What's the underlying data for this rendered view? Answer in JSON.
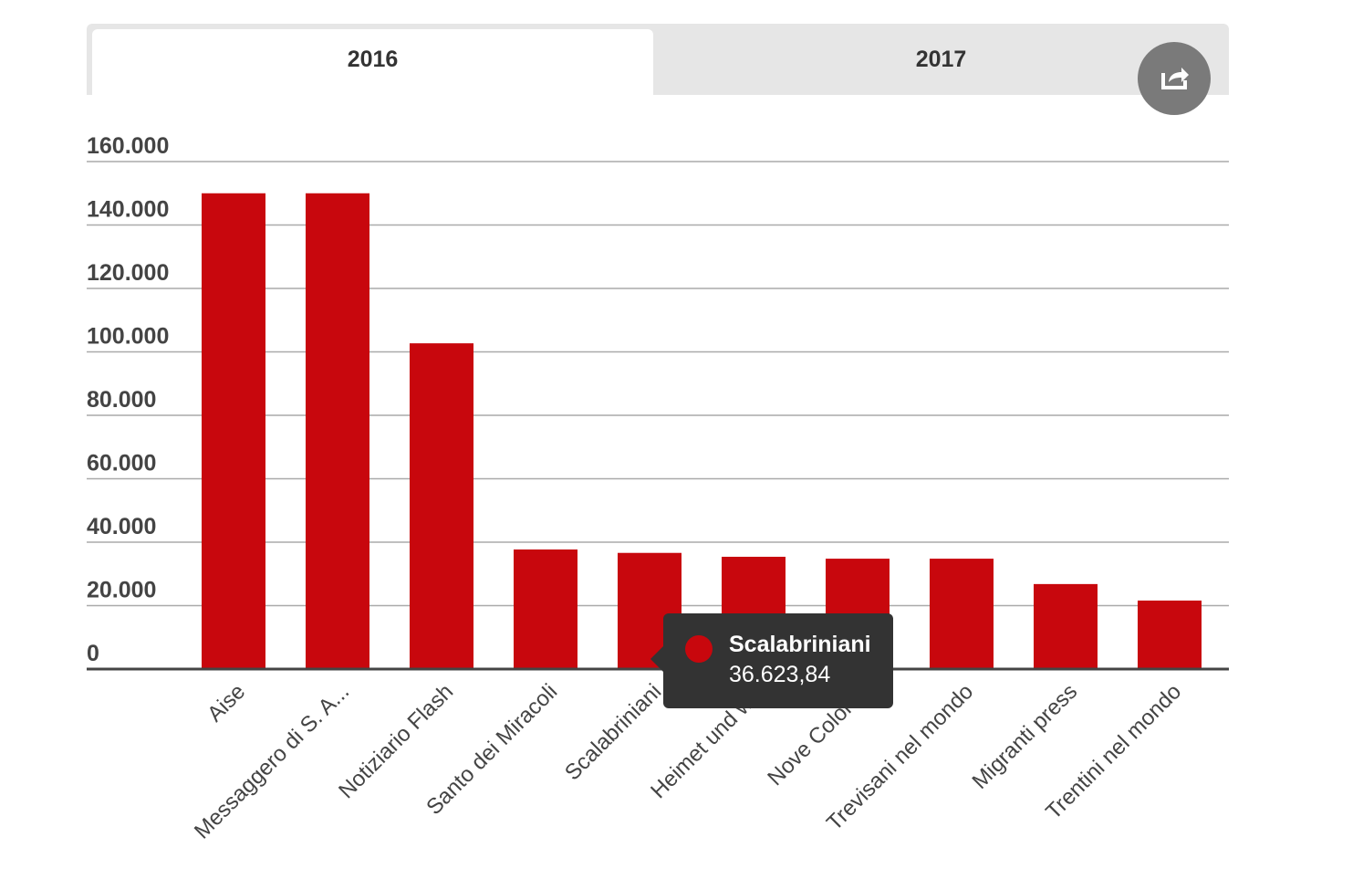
{
  "tabs": [
    {
      "label": "2016",
      "active": true
    },
    {
      "label": "2017",
      "active": false
    }
  ],
  "share_icon": "share-icon",
  "chart_data": {
    "type": "bar",
    "categories": [
      "Aise",
      "Messaggero di S. A...",
      "Notiziario Flash",
      "Santo dei Miracoli",
      "Scalabriniani",
      "Heimet und w...",
      "Nove Colon...",
      "Trevisani nel mondo",
      "Migranti press",
      "Trentini nel mondo"
    ],
    "values": [
      150000,
      150000,
      102700,
      37700,
      36623.84,
      35400,
      34800,
      34800,
      26800,
      21600
    ],
    "yticks": [
      "0",
      "20.000",
      "40.000",
      "60.000",
      "80.000",
      "100.000",
      "120.000",
      "140.000",
      "160.000"
    ],
    "ylim": [
      0,
      160000
    ],
    "grid": true,
    "bar_color": "#c8070d",
    "title": "",
    "xlabel": "",
    "ylabel": ""
  },
  "tooltip": {
    "name": "Scalabriniani",
    "value": "36.623,84"
  }
}
